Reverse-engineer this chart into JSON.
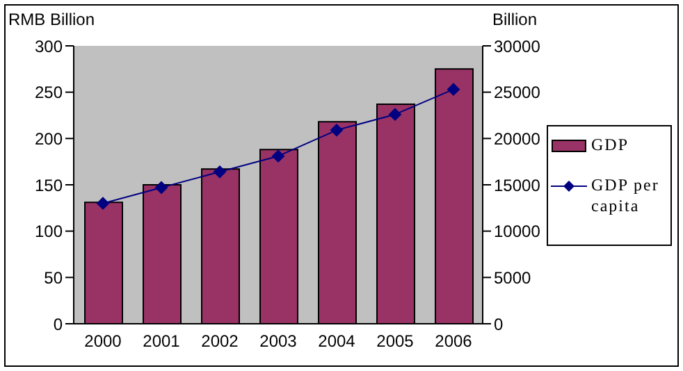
{
  "chart_data": {
    "type": "bar",
    "ylabel": "RMB Billion",
    "y2label": "Billion",
    "categories": [
      "2000",
      "2001",
      "2002",
      "2003",
      "2004",
      "2005",
      "2006"
    ],
    "series": [
      {
        "name": "GDP",
        "color": "#993366",
        "values": [
          131,
          150,
          167,
          188,
          218,
          237,
          275
        ]
      },
      {
        "name": "GDP per capita",
        "type": "line",
        "axis": "y2",
        "color": "#000080",
        "marker": "diamond",
        "values": [
          13000,
          14700,
          16400,
          18100,
          20900,
          22600,
          25300
        ]
      }
    ],
    "ylim": [
      0,
      300
    ],
    "yticks": [
      0,
      50,
      100,
      150,
      200,
      250,
      300
    ],
    "y2lim": [
      0,
      30000
    ],
    "y2ticks": [
      0,
      5000,
      10000,
      15000,
      20000,
      25000,
      30000
    ],
    "grid": false,
    "legend": "right"
  }
}
